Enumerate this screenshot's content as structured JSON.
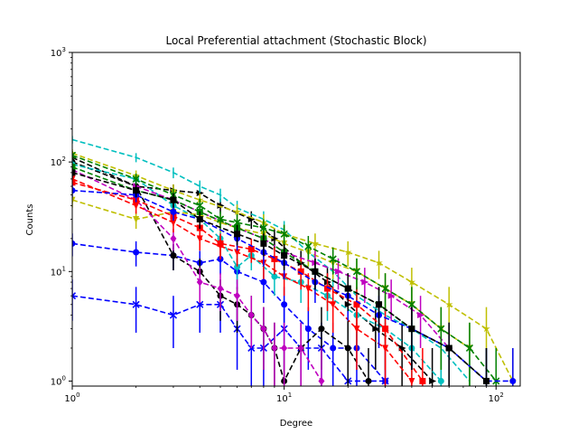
{
  "chart_data": {
    "type": "line",
    "title": "Local Preferential attachment (Stochastic Block)",
    "xlabel": "Degree",
    "ylabel": "Counts",
    "xscale": "log",
    "yscale": "log",
    "xlim": [
      1,
      130
    ],
    "ylim": [
      0.9,
      1000
    ],
    "x_ticks": [
      {
        "value": 1,
        "base": "10",
        "exp": "0"
      },
      {
        "value": 10,
        "base": "10",
        "exp": "1"
      },
      {
        "value": 100,
        "base": "10",
        "exp": "2"
      }
    ],
    "y_ticks": [
      {
        "value": 1,
        "base": "10",
        "exp": "0"
      },
      {
        "value": 10,
        "base": "10",
        "exp": "1"
      },
      {
        "value": 100,
        "base": "10",
        "exp": "2"
      },
      {
        "value": 1000,
        "base": "10",
        "exp": "3"
      }
    ],
    "grid": false,
    "legend": "none",
    "line_style": "dashed",
    "error_bars": true,
    "series": [
      {
        "color": "#0000ff",
        "marker": "x",
        "x": [
          1,
          2,
          3,
          4,
          5,
          6,
          7,
          8,
          10,
          12,
          15,
          20,
          30
        ],
        "y": [
          6,
          5,
          4,
          5,
          5,
          3,
          2,
          2,
          3,
          2,
          2,
          1,
          1
        ]
      },
      {
        "color": "#0000ff",
        "marker": "circle",
        "x": [
          1,
          2,
          3,
          4,
          5,
          6,
          8,
          10,
          13,
          17,
          22,
          30
        ],
        "y": [
          18,
          15,
          14,
          12,
          13,
          10,
          8,
          5,
          3,
          2,
          2,
          1
        ]
      },
      {
        "color": "#000000",
        "marker": "triangle-right",
        "x": [
          1,
          2,
          3,
          4,
          5,
          7,
          9,
          12,
          16,
          20,
          27,
          36,
          50
        ],
        "y": [
          110,
          60,
          55,
          52,
          40,
          30,
          20,
          12,
          8,
          5,
          3,
          2,
          1
        ]
      },
      {
        "color": "#000000",
        "marker": "circle",
        "x": [
          1,
          2,
          3,
          4,
          5,
          6,
          7,
          8,
          9,
          10,
          12,
          15,
          20,
          25
        ],
        "y": [
          100,
          60,
          14,
          10,
          6,
          5,
          4,
          3,
          2,
          1,
          2,
          3,
          2,
          1
        ]
      },
      {
        "color": "#00bfbf",
        "marker": "none",
        "x": [
          1,
          2,
          3,
          4,
          5,
          6,
          8,
          10,
          13,
          17,
          22,
          30,
          40,
          55,
          75
        ],
        "y": [
          160,
          110,
          80,
          60,
          50,
          38,
          30,
          24,
          15,
          10,
          6,
          4,
          3,
          2,
          1
        ]
      },
      {
        "color": "#00bfbf",
        "marker": "circle",
        "x": [
          1,
          2,
          3,
          4,
          5,
          6,
          7,
          9,
          12,
          16,
          22,
          30,
          40,
          55
        ],
        "y": [
          95,
          70,
          40,
          30,
          20,
          11,
          14,
          9,
          8,
          6,
          4,
          3,
          2,
          1
        ]
      },
      {
        "color": "#bfbf00",
        "marker": "triangle-down",
        "x": [
          1,
          2,
          3,
          4,
          5,
          6,
          8,
          10,
          13,
          17,
          22,
          30,
          40,
          55,
          75
        ],
        "y": [
          45,
          30,
          35,
          33,
          28,
          25,
          22,
          18,
          15,
          12,
          10,
          7,
          5,
          3,
          2
        ]
      },
      {
        "color": "#bfbf00",
        "marker": "star",
        "x": [
          1,
          2,
          3,
          4,
          6,
          8,
          10,
          14,
          20,
          28,
          40,
          60,
          90,
          120
        ],
        "y": [
          120,
          75,
          55,
          45,
          35,
          28,
          22,
          18,
          15,
          12,
          8,
          5,
          3,
          1
        ]
      },
      {
        "color": "#bf00bf",
        "marker": "diamond",
        "x": [
          1,
          2,
          3,
          4,
          5,
          6,
          7,
          8,
          9,
          10,
          12,
          15
        ],
        "y": [
          85,
          45,
          20,
          8,
          7,
          6,
          4,
          3,
          2,
          2,
          2,
          1
        ]
      },
      {
        "color": "#bf00bf",
        "marker": "triangle-right",
        "x": [
          2,
          3,
          4,
          6,
          8,
          10,
          14,
          18,
          24,
          32,
          44,
          60
        ],
        "y": [
          60,
          45,
          35,
          25,
          20,
          15,
          12,
          10,
          8,
          6,
          4,
          2
        ]
      },
      {
        "color": "#ff0000",
        "marker": "triangle-down",
        "x": [
          1,
          2,
          3,
          4,
          5,
          6,
          8,
          10,
          13,
          17,
          22,
          30,
          40
        ],
        "y": [
          70,
          40,
          28,
          20,
          17,
          15,
          12,
          9,
          7,
          5,
          3,
          2,
          1
        ]
      },
      {
        "color": "#ff0000",
        "marker": "square",
        "x": [
          1,
          2,
          3,
          4,
          5,
          7,
          9,
          12,
          16,
          22,
          30,
          45
        ],
        "y": [
          65,
          45,
          32,
          25,
          18,
          16,
          13,
          10,
          7,
          5,
          3,
          1
        ]
      },
      {
        "color": "#008000",
        "marker": "x",
        "x": [
          1,
          2,
          3,
          4,
          5,
          6,
          8,
          10,
          13,
          17,
          22,
          30,
          40,
          55,
          75,
          100
        ],
        "y": [
          115,
          70,
          50,
          40,
          30,
          28,
          25,
          22,
          17,
          13,
          10,
          7,
          5,
          3,
          2,
          1
        ]
      },
      {
        "color": "#008000",
        "marker": "square",
        "x": [
          1,
          2,
          3,
          4,
          6,
          8,
          10,
          14,
          20,
          28,
          40,
          60,
          90
        ],
        "y": [
          90,
          55,
          45,
          35,
          25,
          20,
          15,
          10,
          7,
          5,
          3,
          2,
          1
        ]
      },
      {
        "color": "#0000ff",
        "marker": "circle",
        "x": [
          1,
          2,
          3,
          4,
          6,
          8,
          10,
          14,
          20,
          28,
          40,
          60,
          90,
          120
        ],
        "y": [
          55,
          50,
          35,
          30,
          20,
          15,
          12,
          8,
          6,
          4,
          3,
          2,
          1,
          1
        ]
      },
      {
        "color": "#000000",
        "marker": "square",
        "x": [
          1,
          2,
          3,
          4,
          6,
          8,
          10,
          14,
          20,
          28,
          40,
          60,
          90
        ],
        "y": [
          80,
          55,
          45,
          30,
          22,
          18,
          14,
          10,
          7,
          5,
          3,
          2,
          1
        ]
      }
    ]
  }
}
